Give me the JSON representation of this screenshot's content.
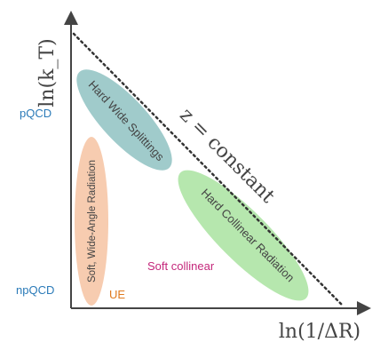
{
  "axes": {
    "y_label": "ln(k_T)",
    "x_label": "ln(1/ΔR)",
    "y_ticks": [
      {
        "label": "pQCD",
        "color": "#2a7ab8"
      },
      {
        "label": "npQCD",
        "color": "#2a7ab8"
      }
    ]
  },
  "diagonal_label": "z = constant",
  "regions": [
    {
      "label": "Hard Wide Splittings",
      "fill": "#8fc2c2"
    },
    {
      "label": "Hard Collinear Radiation",
      "fill": "#a9e3a0"
    },
    {
      "label": "Soft, Wide-Angle Radiation",
      "fill": "#f6c7a7"
    }
  ],
  "annotations": {
    "soft_collinear": {
      "label": "Soft collinear",
      "color": "#c4277b"
    },
    "ue": {
      "label": "UE",
      "color": "#e07a1f"
    }
  },
  "colors": {
    "axis": "#444444",
    "diagonal": "#333333",
    "text": "#444444"
  }
}
